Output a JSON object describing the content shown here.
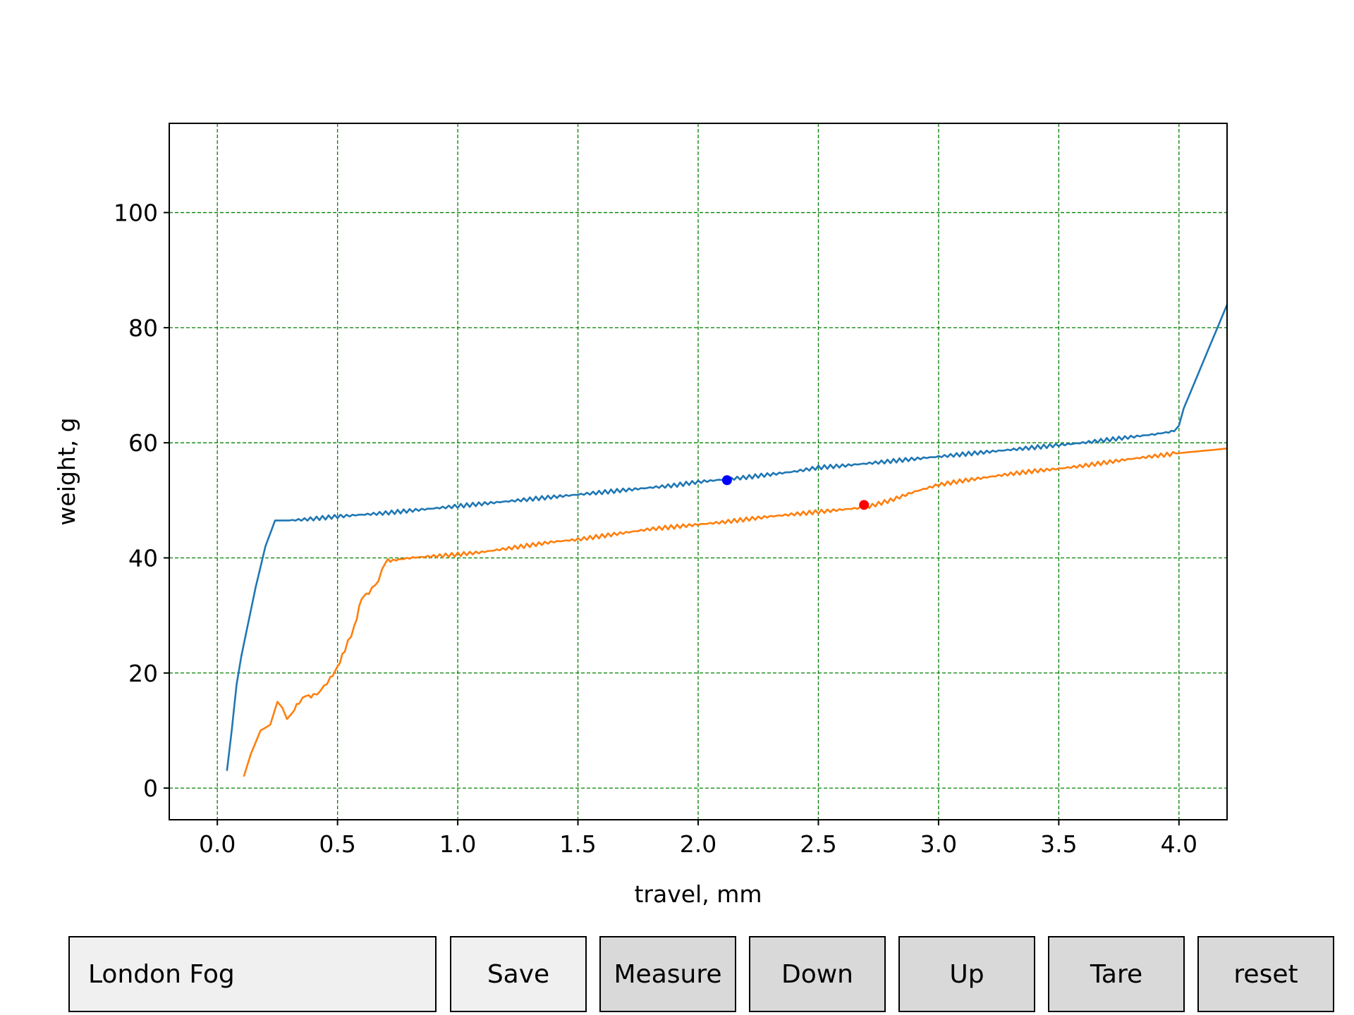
{
  "chart_data": {
    "type": "line",
    "xlabel": "travel, mm",
    "ylabel": "weight, g",
    "xlim": [
      -0.2,
      4.2
    ],
    "ylim": [
      -5.5,
      115.5
    ],
    "xticks": [
      0.0,
      0.5,
      1.0,
      1.5,
      2.0,
      2.5,
      3.0,
      3.5,
      4.0
    ],
    "xtick_labels": [
      "0.0",
      "0.5",
      "1.0",
      "1.5",
      "2.0",
      "2.5",
      "3.0",
      "3.5",
      "4.0"
    ],
    "yticks": [
      0,
      20,
      40,
      60,
      80,
      100
    ],
    "ytick_labels": [
      "0",
      "20",
      "40",
      "60",
      "80",
      "100"
    ],
    "grid": true,
    "grid_color": "#008000",
    "series": [
      {
        "color": "#1f77b4",
        "x": [
          0.04,
          0.06,
          0.08,
          0.1,
          0.13,
          0.16,
          0.2,
          0.24,
          0.27,
          0.3,
          0.4,
          0.5,
          0.6,
          0.7,
          0.8,
          0.9,
          1.0,
          1.1,
          1.2,
          1.3,
          1.4,
          1.5,
          1.6,
          1.7,
          1.8,
          1.9,
          2.0,
          2.1,
          2.2,
          2.3,
          2.4,
          2.5,
          2.6,
          2.7,
          2.8,
          2.9,
          3.0,
          3.1,
          3.2,
          3.3,
          3.4,
          3.5,
          3.6,
          3.7,
          3.8,
          3.9,
          3.98,
          4.0,
          4.02,
          4.05,
          4.08,
          4.11,
          4.14,
          4.17,
          4.2
        ],
        "y": [
          3,
          10,
          18,
          23,
          29,
          35,
          42,
          46.5,
          46.5,
          46.5,
          46.8,
          47.2,
          47.5,
          47.8,
          48.2,
          48.6,
          49,
          49.4,
          49.8,
          50.2,
          50.6,
          51,
          51.4,
          51.8,
          52.2,
          52.6,
          53.2,
          53.6,
          54,
          54.5,
          55,
          55.7,
          56,
          56.4,
          56.8,
          57.2,
          57.6,
          58,
          58.4,
          58.8,
          59.2,
          59.6,
          60,
          60.5,
          61,
          61.5,
          62,
          63,
          66,
          69,
          72,
          75,
          78,
          81,
          84
        ]
      },
      {
        "color": "#ff7f0e",
        "x": [
          0.11,
          0.14,
          0.18,
          0.22,
          0.25,
          0.27,
          0.29,
          0.31,
          0.34,
          0.37,
          0.4,
          0.43,
          0.47,
          0.5,
          0.53,
          0.57,
          0.6,
          0.63,
          0.67,
          0.7,
          0.72,
          0.8,
          0.9,
          1.0,
          1.1,
          1.2,
          1.3,
          1.4,
          1.5,
          1.6,
          1.7,
          1.8,
          1.9,
          2.0,
          2.1,
          2.2,
          2.3,
          2.4,
          2.5,
          2.6,
          2.7,
          2.8,
          2.9,
          3.0,
          3.1,
          3.2,
          3.3,
          3.4,
          3.5,
          3.6,
          3.7,
          3.8,
          3.9,
          4.0,
          4.1,
          4.2
        ],
        "y": [
          2,
          6,
          10,
          11,
          15,
          14,
          12,
          13,
          15,
          16,
          16,
          17,
          19,
          21,
          24,
          28,
          33,
          34,
          36,
          39.5,
          39.5,
          40,
          40.3,
          40.6,
          41,
          41.6,
          42.2,
          42.8,
          43.2,
          43.8,
          44.4,
          45,
          45.4,
          45.8,
          46.2,
          46.7,
          47.2,
          47.6,
          48,
          48.4,
          48.8,
          50,
          51.5,
          52.7,
          53.4,
          54,
          54.6,
          55.1,
          55.5,
          56,
          56.6,
          57.2,
          57.7,
          58.2,
          58.6,
          59
        ]
      }
    ],
    "markers": [
      {
        "x": 2.12,
        "y": 53.5,
        "color": "#0000ff"
      },
      {
        "x": 2.69,
        "y": 49.2,
        "color": "#ff0000"
      }
    ]
  },
  "controls": {
    "name_value": "London Fog",
    "save_label": "Save",
    "measure_label": "Measure",
    "down_label": "Down",
    "up_label": "Up",
    "tare_label": "Tare",
    "reset_label": "reset"
  }
}
